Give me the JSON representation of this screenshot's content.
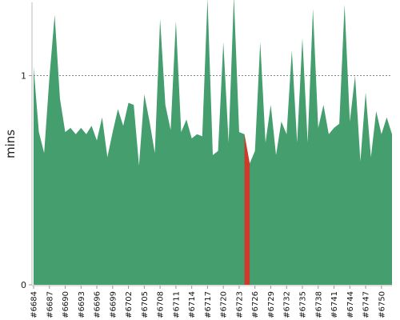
{
  "chart_data": {
    "type": "area",
    "ylabel": "mins",
    "ylim": [
      0,
      1.35
    ],
    "yticks": [
      0,
      1
    ],
    "reference_line": 1,
    "series_color": "#459e6e",
    "highlight_color": "#cc3b2b",
    "highlight_build": "#6725",
    "x": [
      "#6684",
      "#6685",
      "#6686",
      "#6687",
      "#6688",
      "#6689",
      "#6690",
      "#6691",
      "#6692",
      "#6693",
      "#6694",
      "#6695",
      "#6696",
      "#6697",
      "#6698",
      "#6699",
      "#6700",
      "#6701",
      "#6702",
      "#6703",
      "#6704",
      "#6705",
      "#6706",
      "#6707",
      "#6708",
      "#6709",
      "#6710",
      "#6711",
      "#6712",
      "#6713",
      "#6714",
      "#6715",
      "#6716",
      "#6717",
      "#6718",
      "#6719",
      "#6720",
      "#6721",
      "#6722",
      "#6723",
      "#6724",
      "#6725",
      "#6726",
      "#6727",
      "#6728",
      "#6729",
      "#6730",
      "#6731",
      "#6732",
      "#6733",
      "#6734",
      "#6735",
      "#6736",
      "#6737",
      "#6738",
      "#6739",
      "#6740",
      "#6741",
      "#6742",
      "#6743",
      "#6744",
      "#6745",
      "#6746",
      "#6747",
      "#6748",
      "#6749",
      "#6750",
      "#6751",
      "#6752"
    ],
    "values": [
      1.04,
      0.73,
      0.63,
      0.99,
      1.29,
      0.89,
      0.73,
      0.75,
      0.72,
      0.75,
      0.72,
      0.76,
      0.69,
      0.8,
      0.61,
      0.73,
      0.84,
      0.76,
      0.87,
      0.86,
      0.57,
      0.91,
      0.78,
      0.63,
      1.27,
      0.86,
      0.74,
      1.26,
      0.73,
      0.79,
      0.7,
      0.72,
      0.71,
      1.37,
      0.62,
      0.64,
      1.16,
      0.68,
      1.38,
      0.73,
      0.72,
      0.58,
      0.64,
      1.16,
      0.68,
      0.86,
      0.62,
      0.78,
      0.72,
      1.12,
      0.68,
      1.18,
      0.68,
      1.32,
      0.75,
      0.86,
      0.72,
      0.75,
      0.77,
      1.34,
      0.78,
      1.0,
      0.59,
      0.92,
      0.61,
      0.83,
      0.72,
      0.8,
      0.72
    ],
    "tick_labels": [
      "#6684",
      "#6687",
      "#6690",
      "#6693",
      "#6696",
      "#6699",
      "#6702",
      "#6705",
      "#6708",
      "#6711",
      "#6714",
      "#6717",
      "#6720",
      "#6723",
      "#6726",
      "#6729",
      "#6732",
      "#6735",
      "#6738",
      "#6741",
      "#6744",
      "#6747",
      "#6750"
    ]
  }
}
